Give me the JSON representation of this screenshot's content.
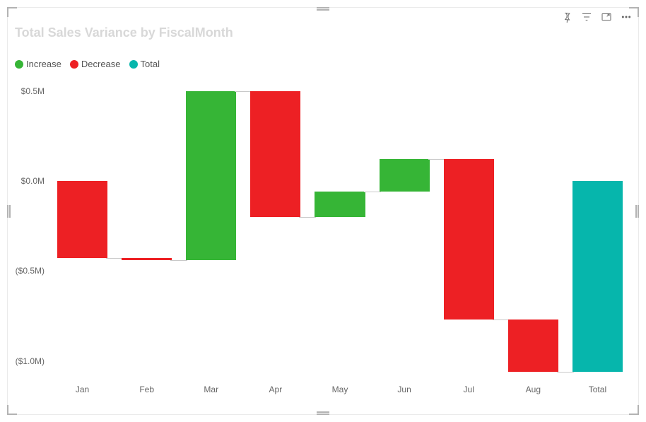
{
  "chart": {
    "type": "waterfall",
    "title": "Total Sales Variance by FiscalMonth",
    "title_color": "#d8d8d8",
    "title_fontsize": 18,
    "background_color": "#ffffff",
    "axis_label_color": "#666666",
    "axis_label_fontsize": 12,
    "legend": [
      {
        "label": "Increase",
        "color": "#36b536"
      },
      {
        "label": "Decrease",
        "color": "#ed2024"
      },
      {
        "label": "Total",
        "color": "#06b6ac"
      }
    ],
    "y": {
      "min": -1100000,
      "max": 550000,
      "ticks": [
        {
          "v": 500000,
          "label": "$0.5M"
        },
        {
          "v": 0,
          "label": "$0.0M"
        },
        {
          "v": -500000,
          "label": "($0.5M)"
        },
        {
          "v": -1000000,
          "label": "($1.0M)"
        }
      ]
    },
    "categories": [
      "Jan",
      "Feb",
      "Mar",
      "Apr",
      "May",
      "Jun",
      "Jul",
      "Aug",
      "Total"
    ],
    "bars": [
      {
        "name": "Jan",
        "kind": "decrease",
        "start": 0,
        "end": -430000,
        "color": "#ed2024"
      },
      {
        "name": "Feb",
        "kind": "decrease",
        "start": -430000,
        "end": -440000,
        "color": "#ed2024"
      },
      {
        "name": "Mar",
        "kind": "increase",
        "start": -440000,
        "end": 500000,
        "color": "#36b536"
      },
      {
        "name": "Apr",
        "kind": "decrease",
        "start": 500000,
        "end": -200000,
        "color": "#ed2024"
      },
      {
        "name": "May",
        "kind": "increase",
        "start": -200000,
        "end": -60000,
        "color": "#36b536"
      },
      {
        "name": "Jun",
        "kind": "increase",
        "start": -60000,
        "end": 120000,
        "color": "#36b536"
      },
      {
        "name": "Jul",
        "kind": "decrease",
        "start": 120000,
        "end": -770000,
        "color": "#ed2024"
      },
      {
        "name": "Aug",
        "kind": "decrease",
        "start": -770000,
        "end": -1060000,
        "color": "#ed2024"
      },
      {
        "name": "Total",
        "kind": "total",
        "start": 0,
        "end": -1060000,
        "color": "#06b6ac"
      }
    ],
    "bar_width_ratio": 0.78
  },
  "toolbar": {
    "pin": "Pin visual",
    "filter": "Filters",
    "focus": "Focus mode",
    "more": "More options"
  }
}
